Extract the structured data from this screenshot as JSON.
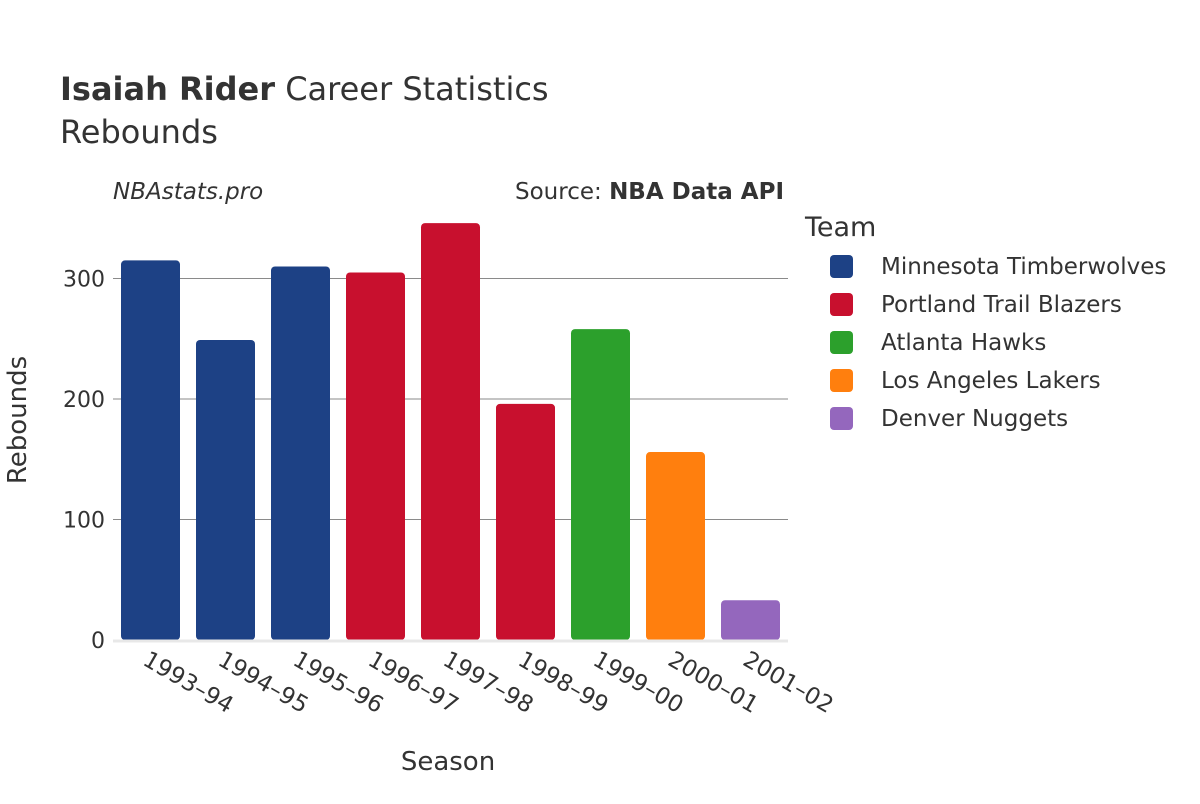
{
  "header": {
    "title_bold": "Isaiah Rider",
    "title_rest": " Career Statistics",
    "subtitle": "Rebounds",
    "watermark": "NBAstats.pro",
    "source_prefix": "Source: ",
    "source_bold": "NBA Data API"
  },
  "legend": {
    "title": "Team",
    "items": [
      {
        "label": "Minnesota Timberwolves",
        "color": "#1d4185"
      },
      {
        "label": "Portland Trail Blazers",
        "color": "#c8102e"
      },
      {
        "label": "Atlanta Hawks",
        "color": "#2ca02c"
      },
      {
        "label": "Los Angeles Lakers",
        "color": "#ff7f0e"
      },
      {
        "label": "Denver Nuggets",
        "color": "#9467bd"
      }
    ]
  },
  "chart_data": {
    "type": "bar",
    "xlabel": "Season",
    "ylabel": "Rebounds",
    "ylim": [
      0,
      360
    ],
    "yticks": [
      0,
      100,
      200,
      300
    ],
    "grid": true,
    "legend_position": "right",
    "categories": [
      "1993–94",
      "1994–95",
      "1995–96",
      "1996–97",
      "1997–98",
      "1998–99",
      "1999–00",
      "2000–01",
      "2001–02"
    ],
    "values": [
      315,
      249,
      310,
      305,
      346,
      196,
      258,
      156,
      33
    ],
    "teams": [
      "Minnesota Timberwolves",
      "Minnesota Timberwolves",
      "Minnesota Timberwolves",
      "Portland Trail Blazers",
      "Portland Trail Blazers",
      "Portland Trail Blazers",
      "Atlanta Hawks",
      "Los Angeles Lakers",
      "Denver Nuggets"
    ]
  }
}
